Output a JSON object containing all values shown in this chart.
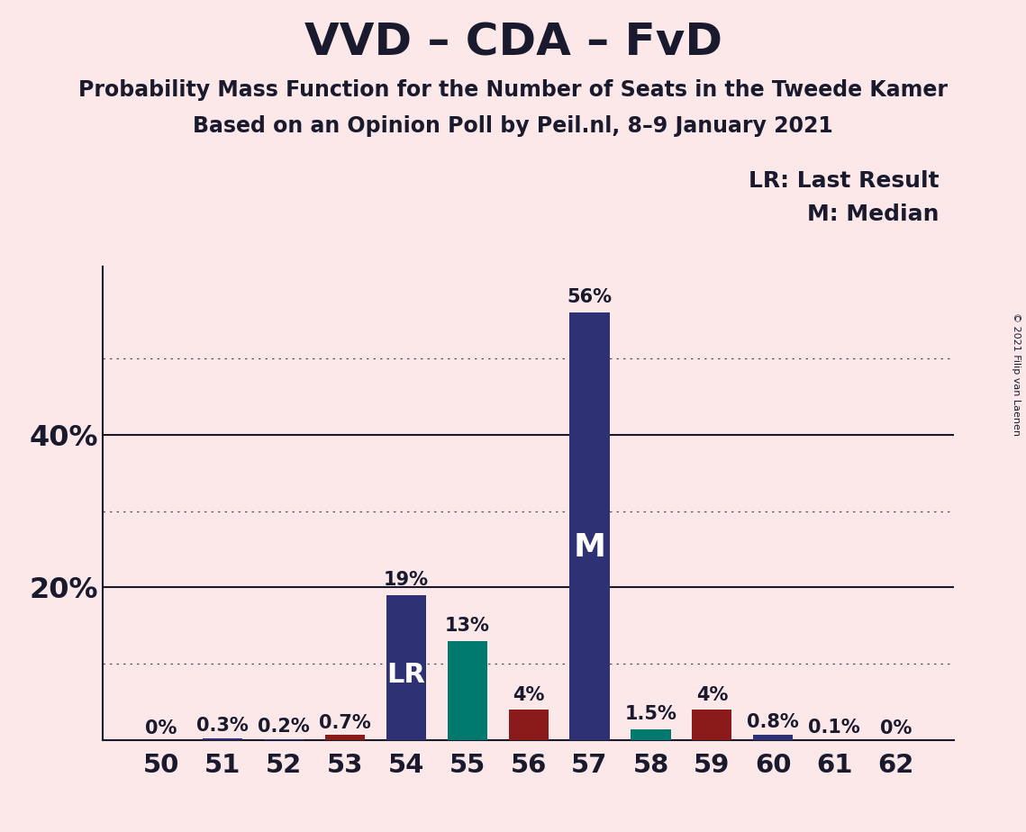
{
  "title": "VVD – CDA – FvD",
  "subtitle1": "Probability Mass Function for the Number of Seats in the Tweede Kamer",
  "subtitle2": "Based on an Opinion Poll by Peil.nl, 8–9 January 2021",
  "copyright": "© 2021 Filip van Laenen",
  "categories": [
    50,
    51,
    52,
    53,
    54,
    55,
    56,
    57,
    58,
    59,
    60,
    61,
    62
  ],
  "values": [
    0.0,
    0.3,
    0.2,
    0.7,
    19.0,
    13.0,
    4.0,
    56.0,
    1.5,
    4.0,
    0.8,
    0.1,
    0.0
  ],
  "labels": [
    "0%",
    "0.3%",
    "0.2%",
    "0.7%",
    "19%",
    "13%",
    "4%",
    "56%",
    "1.5%",
    "4%",
    "0.8%",
    "0.1%",
    "0%"
  ],
  "bar_colors": [
    "#2e3275",
    "#2e3275",
    "#2e3275",
    "#8b1a1a",
    "#2e3275",
    "#007a6e",
    "#8b1a1a",
    "#2e3275",
    "#007a6e",
    "#8b1a1a",
    "#2e3275",
    "#2e3275",
    "#2e3275"
  ],
  "lr_idx": 4,
  "median_idx": 7,
  "lr_label": "LR",
  "median_label": "M",
  "background_color": "#fce8e8",
  "solid_lines": [
    20,
    40
  ],
  "dotted_lines": [
    10,
    30,
    50
  ],
  "legend_lr": "LR: Last Result",
  "legend_m": "M: Median",
  "title_fontsize": 36,
  "subtitle_fontsize": 17,
  "bar_label_fontsize": 15,
  "lr_fontsize": 22,
  "median_fontsize": 26,
  "legend_fontsize": 18,
  "tick_fontsize": 21,
  "ytick_label_fontsize": 23,
  "ylim": [
    0,
    62
  ],
  "text_color": "#1a1a2e"
}
